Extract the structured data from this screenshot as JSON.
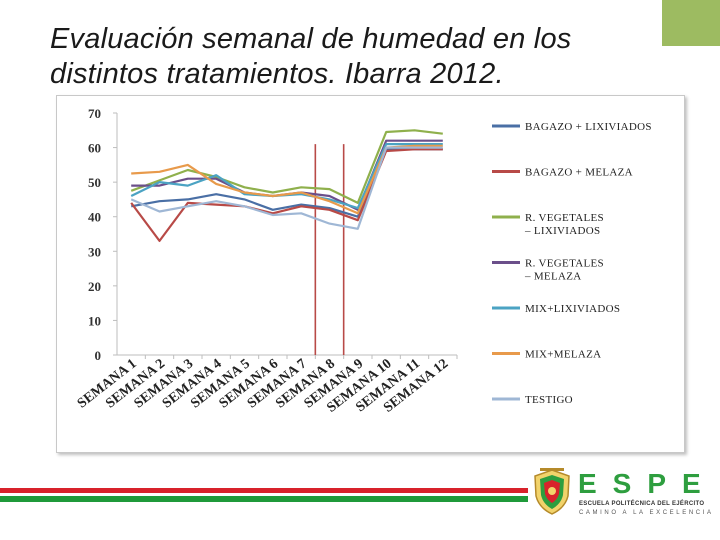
{
  "slide": {
    "title_line1": "Evaluación semanal de humedad en los",
    "title_line2": "distintos tratamientos. Ibarra 2012.",
    "accent_color": "#9dbb61"
  },
  "chart_data": {
    "type": "line",
    "title": "",
    "xlabel": "",
    "ylabel": "",
    "ylim": [
      0,
      70
    ],
    "yticks": [
      0,
      10,
      20,
      30,
      40,
      50,
      60,
      70
    ],
    "grid": false,
    "legend_position": "right",
    "categories": [
      "SEMANA 1",
      "SEMANA 2",
      "SEMANA 3",
      "SEMANA 4",
      "SEMANA 5",
      "SEMANA 6",
      "SEMANA 7",
      "SEMANA 8",
      "SEMANA 9",
      "SEMANA 10",
      "SEMANA 11",
      "SEMANA 12"
    ],
    "series": [
      {
        "name": "BAGAZO + LIXIVIADOS",
        "color": "#4a6fa5",
        "values": [
          43,
          44.5,
          45,
          46.5,
          45,
          42,
          43.5,
          42.5,
          40,
          59.5,
          59.5,
          59.5
        ]
      },
      {
        "name": "BAGAZO + MELAZA",
        "color": "#b84a47",
        "values": [
          44,
          33,
          44,
          43.5,
          43,
          41,
          43,
          42,
          39,
          59,
          59.5,
          59.5
        ]
      },
      {
        "name": "R. VEGETALES – LIXIVIADOS",
        "color": "#8fb04c",
        "values": [
          47.5,
          50.5,
          53.5,
          51.5,
          48.5,
          47,
          48.5,
          48,
          44,
          64.5,
          65,
          64
        ]
      },
      {
        "name": "R. VEGETALES – MELAZA",
        "color": "#6b4f8a",
        "values": [
          49,
          49,
          51,
          51,
          47,
          46,
          47,
          46,
          42,
          62,
          62,
          62
        ]
      },
      {
        "name": "MIX+LIXIVIADOS",
        "color": "#4ba3c3",
        "values": [
          46,
          50,
          49,
          52,
          46.5,
          46,
          46.5,
          45,
          42.5,
          61,
          61,
          61
        ]
      },
      {
        "name": "MIX+MELAZA",
        "color": "#e89a4b",
        "values": [
          52.5,
          53,
          55,
          49.5,
          47,
          46,
          47,
          44.5,
          41,
          60,
          60.5,
          60.5
        ]
      },
      {
        "name": "TESTIGO",
        "color": "#9fb7d5",
        "values": [
          45,
          41.5,
          43,
          44.5,
          43,
          40.5,
          41,
          38,
          36.5,
          60,
          60,
          60
        ]
      }
    ],
    "vertical_markers": [
      {
        "position": 7.0,
        "bottom": 0,
        "color": "#b84a47"
      },
      {
        "position": 8.0,
        "bottom": 0,
        "color": "#b84a47"
      }
    ]
  },
  "logo": {
    "brand": "ESPE",
    "line1": "ESCUELA POLITÉCNICA DEL EJÉRCITO",
    "line2": "CAMINO A LA EXCELENCIA",
    "brand_color": "#2e9e3f"
  }
}
